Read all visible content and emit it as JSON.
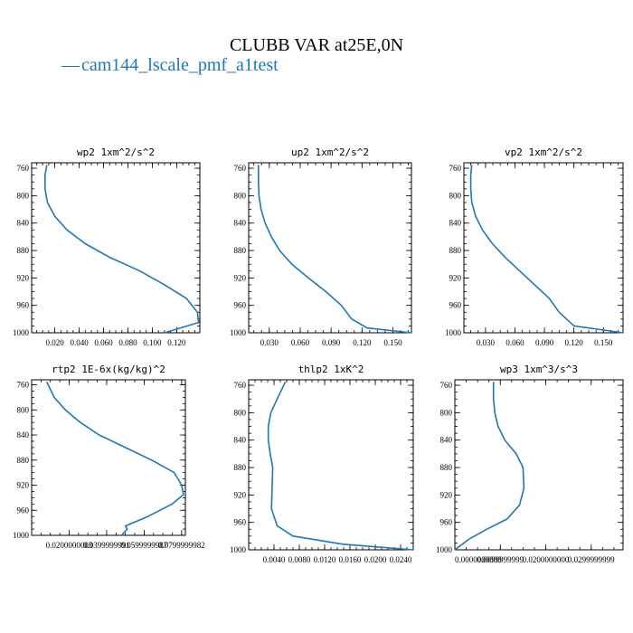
{
  "figure": {
    "title": "CLUBB VAR at25E,0N",
    "legend": {
      "symbol": "—",
      "label": "cam144_lscale_pmf_a1test",
      "color": "#1f77b4"
    }
  },
  "chart_data": [
    {
      "type": "line",
      "title": "wp2  1xm^2/s^2",
      "xlabel": "",
      "ylabel": "",
      "xlim": [
        0.001,
        0.139
      ],
      "ylim": [
        1000,
        752
      ],
      "xticks": [
        0.02,
        0.04,
        0.06,
        0.08,
        0.1,
        0.12
      ],
      "xtick_labels": [
        "0.020",
        "0.040",
        "0.060",
        "0.080",
        "0.100",
        "0.120"
      ],
      "yticks": [
        760,
        800,
        840,
        880,
        920,
        960,
        1000
      ],
      "series": [
        {
          "color": "#1f77b4",
          "x": [
            0.0135,
            0.012,
            0.012,
            0.014,
            0.02,
            0.03,
            0.045,
            0.065,
            0.09,
            0.11,
            0.128,
            0.137,
            0.138,
            0.11
          ],
          "y": [
            755,
            770,
            790,
            810,
            830,
            850,
            870,
            890,
            910,
            930,
            950,
            970,
            985,
            1000
          ]
        }
      ]
    },
    {
      "type": "line",
      "title": "up2  1xm^2/s^2",
      "xlabel": "",
      "ylabel": "",
      "xlim": [
        0.01,
        0.168
      ],
      "ylim": [
        1000,
        752
      ],
      "xticks": [
        0.03,
        0.06,
        0.09,
        0.12,
        0.15
      ],
      "xtick_labels": [
        "0.030",
        "0.060",
        "0.090",
        "0.120",
        "0.150"
      ],
      "yticks": [
        760,
        800,
        840,
        880,
        920,
        960,
        1000
      ],
      "series": [
        {
          "color": "#1f77b4",
          "x": [
            0.0195,
            0.0195,
            0.02,
            0.022,
            0.026,
            0.032,
            0.04,
            0.052,
            0.068,
            0.085,
            0.1,
            0.11,
            0.125,
            0.168
          ],
          "y": [
            755,
            780,
            800,
            820,
            840,
            860,
            880,
            900,
            920,
            940,
            960,
            980,
            993,
            1000
          ]
        }
      ]
    },
    {
      "type": "line",
      "title": "vp2  1xm^2/s^2",
      "xlabel": "",
      "ylabel": "",
      "xlim": [
        0.008,
        0.17
      ],
      "ylim": [
        1000,
        752
      ],
      "xticks": [
        0.03,
        0.06,
        0.09,
        0.12,
        0.15
      ],
      "xtick_labels": [
        "0.030",
        "0.060",
        "0.090",
        "0.120",
        "0.150"
      ],
      "yticks": [
        760,
        800,
        840,
        880,
        920,
        960,
        1000
      ],
      "series": [
        {
          "color": "#1f77b4",
          "x": [
            0.016,
            0.015,
            0.015,
            0.016,
            0.02,
            0.027,
            0.037,
            0.05,
            0.065,
            0.08,
            0.095,
            0.105,
            0.12,
            0.17
          ],
          "y": [
            755,
            770,
            790,
            810,
            830,
            850,
            870,
            890,
            910,
            930,
            950,
            970,
            990,
            1000
          ]
        }
      ]
    },
    {
      "type": "line",
      "title": "rtp2  1E-6x(kg/kg)^2",
      "xlabel": "",
      "ylabel": "",
      "xlim": [
        0.0,
        0.082
      ],
      "ylim": [
        1000,
        752
      ],
      "xticks": [
        0.02,
        0.04,
        0.06,
        0.08
      ],
      "xtick_labels": [
        "0.0200000003",
        "0.0399999991",
        "0.0599999987",
        "0.0799999982"
      ],
      "yticks": [
        760,
        800,
        840,
        880,
        920,
        960,
        1000
      ],
      "series": [
        {
          "color": "#1f77b4",
          "x": [
            0.008,
            0.012,
            0.018,
            0.026,
            0.036,
            0.05,
            0.064,
            0.076,
            0.08,
            0.081,
            0.075,
            0.062,
            0.05,
            0.051,
            0.048
          ],
          "y": [
            755,
            780,
            800,
            820,
            840,
            860,
            880,
            900,
            920,
            935,
            950,
            970,
            985,
            990,
            1000
          ]
        }
      ]
    },
    {
      "type": "line",
      "title": "thlp2  1xK^2",
      "xlabel": "",
      "ylabel": "",
      "xlim": [
        0.0,
        0.026
      ],
      "ylim": [
        1000,
        752
      ],
      "xticks": [
        0.004,
        0.008,
        0.012,
        0.016,
        0.02,
        0.024
      ],
      "xtick_labels": [
        "0.0040",
        "0.0080",
        "0.0120",
        "0.0160",
        "0.0200",
        "0.0240"
      ],
      "yticks": [
        760,
        800,
        840,
        880,
        920,
        960,
        1000
      ],
      "series": [
        {
          "color": "#1f77b4",
          "x": [
            0.0058,
            0.0045,
            0.0035,
            0.0031,
            0.0031,
            0.0034,
            0.0038,
            0.0037,
            0.0036,
            0.0045,
            0.007,
            0.015,
            0.026
          ],
          "y": [
            755,
            780,
            800,
            820,
            840,
            860,
            880,
            910,
            940,
            965,
            980,
            992,
            1000
          ]
        }
      ]
    },
    {
      "type": "line",
      "title": "wp3  1xm^3/s^3",
      "xlabel": "",
      "ylabel": "",
      "xlim": [
        0.0,
        0.037
      ],
      "ylim": [
        1000,
        752
      ],
      "xticks": [
        0.0,
        0.01,
        0.02,
        0.03
      ],
      "xtick_labels": [
        "0.0000000000",
        "0.0099999999",
        "0.0200000000",
        "0.0299999999"
      ],
      "yticks": [
        760,
        800,
        840,
        880,
        920,
        960,
        1000
      ],
      "series": [
        {
          "color": "#1f77b4",
          "x": [
            0.0085,
            0.0085,
            0.0088,
            0.0095,
            0.011,
            0.0135,
            0.015,
            0.0152,
            0.0142,
            0.0115,
            0.007,
            0.003,
            0.0
          ],
          "y": [
            755,
            780,
            800,
            820,
            840,
            860,
            880,
            910,
            935,
            955,
            970,
            985,
            1000
          ]
        }
      ]
    }
  ]
}
